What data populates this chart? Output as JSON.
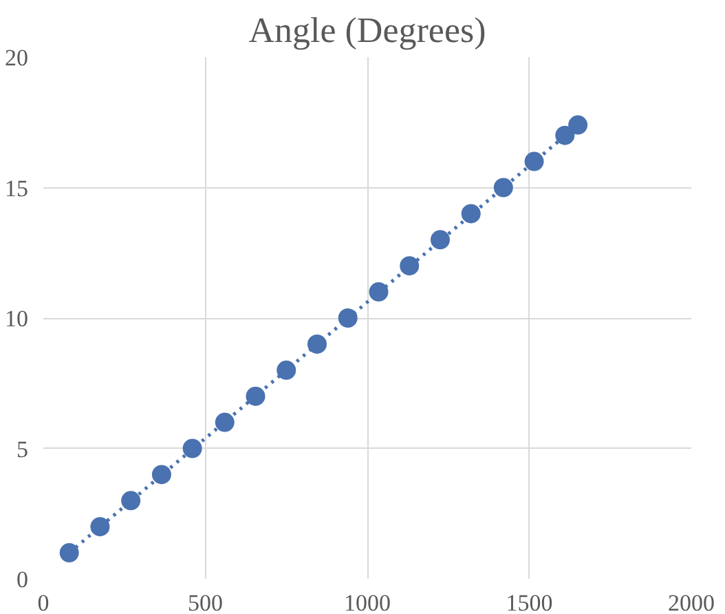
{
  "chart_data": {
    "type": "scatter",
    "title": "Angle (Degrees)",
    "xlim": [
      0,
      2000
    ],
    "ylim": [
      0,
      20
    ],
    "xticks": [
      0,
      500,
      1000,
      1500,
      2000
    ],
    "yticks": [
      0,
      5,
      10,
      15,
      20
    ],
    "grid": true,
    "series": [
      {
        "color": "#4a72b0",
        "marker": "circle",
        "x": [
          80,
          175,
          270,
          365,
          460,
          560,
          655,
          750,
          845,
          940,
          1035,
          1130,
          1225,
          1320,
          1420,
          1515,
          1610,
          1650
        ],
        "values": [
          1,
          2,
          3,
          4,
          5,
          6,
          7,
          8,
          9,
          10,
          11,
          12,
          13,
          14,
          15,
          16,
          17,
          17.4
        ]
      },
      {
        "type": "line",
        "color": "#4a72b0",
        "marker": "none",
        "line_style": "dotted",
        "x": [
          80,
          1650
        ],
        "values": [
          1,
          17.4
        ]
      }
    ]
  }
}
